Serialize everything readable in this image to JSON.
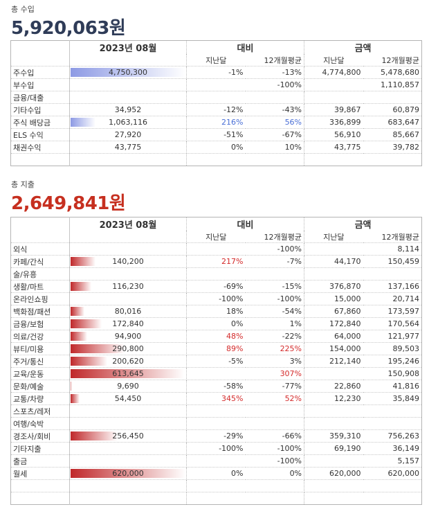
{
  "income": {
    "label": "총 수입",
    "total": "5,920,063원",
    "total_color": "#2f3c58",
    "month": "2023년 08월",
    "cmp_header": "대비",
    "amt_header": "금액",
    "sub_prev": "지난달",
    "sub_avg": "12개월평균",
    "rows": [
      {
        "cat": "주수입",
        "cur": "4,750,300",
        "pct": 100,
        "vp": "-1%",
        "va": "-13%",
        "ap": "4,774,800",
        "aa": "5,478,680"
      },
      {
        "cat": "부수입",
        "cur": "",
        "pct": 0,
        "vp": "",
        "va": "-100%",
        "ap": "",
        "aa": "1,110,857"
      },
      {
        "cat": "금융/대출",
        "cur": "",
        "pct": 0,
        "vp": "",
        "va": "",
        "ap": "",
        "aa": ""
      },
      {
        "cat": "기타수입",
        "cur": "34,952",
        "pct": 0.7,
        "vp": "-12%",
        "va": "-43%",
        "ap": "39,867",
        "aa": "60,879"
      },
      {
        "cat": "주식 배당금",
        "cur": "1,063,116",
        "pct": 22.4,
        "vp": "216%",
        "va": "56%",
        "ap": "336,899",
        "aa": "683,647",
        "hl": "blue"
      },
      {
        "cat": " ELS 수익",
        "cur": "27,920",
        "pct": 0.6,
        "vp": "-51%",
        "va": "-67%",
        "ap": "56,910",
        "aa": "85,667"
      },
      {
        "cat": "채권수익",
        "cur": "43,775",
        "pct": 0.9,
        "vp": "0%",
        "va": "10%",
        "ap": "43,775",
        "aa": "39,782"
      },
      {
        "cat": "",
        "cur": "",
        "pct": 0,
        "vp": "",
        "va": "",
        "ap": "",
        "aa": ""
      }
    ]
  },
  "expense": {
    "label": "총 지출",
    "total": "2,649,841원",
    "total_color": "#c62f1f",
    "month": "2023년 08월",
    "cmp_header": "대비",
    "amt_header": "금액",
    "sub_prev": "지난달",
    "sub_avg": "12개월평균",
    "rows": [
      {
        "cat": "외식",
        "cur": "",
        "pct": 0,
        "vp": "",
        "va": "-100%",
        "ap": "",
        "aa": "8,114"
      },
      {
        "cat": "카페/간식",
        "cur": "140,200",
        "pct": 22.8,
        "vp": "217%",
        "va": "-7%",
        "ap": "44,170",
        "aa": "150,459",
        "rp": true
      },
      {
        "cat": "술/유흥",
        "cur": "",
        "pct": 0,
        "vp": "",
        "va": "",
        "ap": "",
        "aa": ""
      },
      {
        "cat": "생활/마트",
        "cur": "116,230",
        "pct": 19,
        "vp": "-69%",
        "va": "-15%",
        "ap": "376,870",
        "aa": "137,166"
      },
      {
        "cat": "온라인쇼핑",
        "cur": "",
        "pct": 0,
        "vp": "-100%",
        "va": "-100%",
        "ap": "15,000",
        "aa": "20,714"
      },
      {
        "cat": "백화점/패션",
        "cur": "80,016",
        "pct": 13,
        "vp": "18%",
        "va": "-54%",
        "ap": "67,860",
        "aa": "173,597"
      },
      {
        "cat": "금융/보험",
        "cur": "172,840",
        "pct": 28.2,
        "vp": "0%",
        "va": "1%",
        "ap": "172,840",
        "aa": "170,564"
      },
      {
        "cat": "의료/건강",
        "cur": "94,900",
        "pct": 15.5,
        "vp": "48%",
        "va": "-22%",
        "ap": "64,000",
        "aa": "121,977",
        "rp": true
      },
      {
        "cat": "뷰티/미용",
        "cur": "290,800",
        "pct": 47.4,
        "vp": "89%",
        "va": "225%",
        "ap": "154,000",
        "aa": "89,503",
        "rp": true,
        "ra": true
      },
      {
        "cat": "주거/통신",
        "cur": "200,620",
        "pct": 32.7,
        "vp": "-5%",
        "va": "3%",
        "ap": "212,140",
        "aa": "195,246"
      },
      {
        "cat": "교육/운동",
        "cur": "613,645",
        "pct": 99,
        "vp": "",
        "va": "307%",
        "ap": "",
        "aa": "150,908",
        "ra": true
      },
      {
        "cat": "문화/예술",
        "cur": "9,690",
        "pct": 1.6,
        "vp": "-58%",
        "va": "-77%",
        "ap": "22,860",
        "aa": "41,816"
      },
      {
        "cat": "교통/차량",
        "cur": "54,450",
        "pct": 8.8,
        "vp": "345%",
        "va": "52%",
        "ap": "12,230",
        "aa": "35,849",
        "rp": true,
        "ra": true
      },
      {
        "cat": "스포츠/레저",
        "cur": "",
        "pct": 0,
        "vp": "",
        "va": "",
        "ap": "",
        "aa": ""
      },
      {
        "cat": "여행/숙박",
        "cur": "",
        "pct": 0,
        "vp": "",
        "va": "",
        "ap": "",
        "aa": ""
      },
      {
        "cat": "경조사/회비",
        "cur": "256,450",
        "pct": 41.4,
        "vp": "-29%",
        "va": "-66%",
        "ap": "359,310",
        "aa": "756,263"
      },
      {
        "cat": "기타지출",
        "cur": "",
        "pct": 0,
        "vp": "-100%",
        "va": "-100%",
        "ap": "69,190",
        "aa": "36,149"
      },
      {
        "cat": "출금",
        "cur": "",
        "pct": 0,
        "vp": "",
        "va": "-100%",
        "ap": "",
        "aa": "5,157"
      },
      {
        "cat": "월세",
        "cur": "620,000",
        "pct": 100,
        "vp": "0%",
        "va": "0%",
        "ap": "620,000",
        "aa": "620,000"
      },
      {
        "cat": "",
        "cur": "",
        "pct": 0,
        "vp": "",
        "va": "",
        "ap": "",
        "aa": ""
      },
      {
        "cat": "",
        "cur": "",
        "pct": 0,
        "vp": "",
        "va": "",
        "ap": "",
        "aa": ""
      }
    ]
  }
}
